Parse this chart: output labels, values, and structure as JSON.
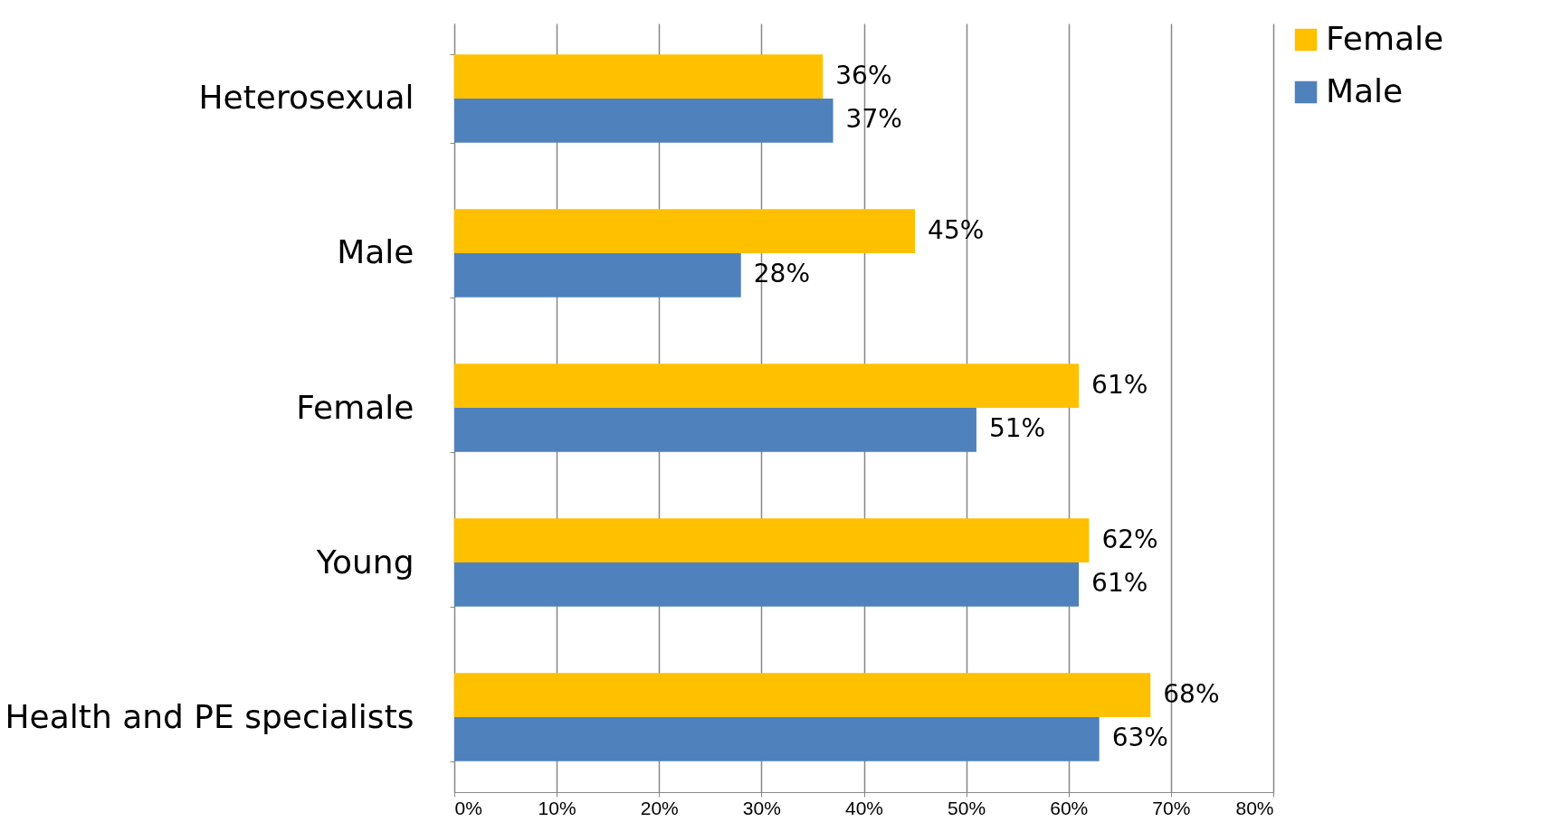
{
  "chart_data": {
    "type": "bar",
    "orientation": "horizontal",
    "categories": [
      "Heterosexual",
      "Male",
      "Female",
      "Young",
      "Health and PE specialists"
    ],
    "series": [
      {
        "name": "Female",
        "color": "#ffc000",
        "values": [
          36,
          45,
          61,
          62,
          68
        ],
        "value_labels": [
          "36%",
          "45%",
          "61%",
          "62%",
          "68%"
        ]
      },
      {
        "name": "Male",
        "color": "#4f81bd",
        "values": [
          37,
          28,
          51,
          61,
          63
        ],
        "value_labels": [
          "37%",
          "28%",
          "51%",
          "61%",
          "63%"
        ]
      }
    ],
    "xlim": [
      0,
      80
    ],
    "xticks": [
      {
        "value": 0,
        "label": "0%"
      },
      {
        "value": 10,
        "label": "10%"
      },
      {
        "value": 20,
        "label": "20%"
      },
      {
        "value": 30,
        "label": "30%"
      },
      {
        "value": 40,
        "label": "40%"
      },
      {
        "value": 50,
        "label": "50%"
      },
      {
        "value": 60,
        "label": "60%"
      },
      {
        "value": 70,
        "label": "70%"
      },
      {
        "value": 80,
        "label": "80%"
      }
    ],
    "grid": "x",
    "legend": "right"
  }
}
